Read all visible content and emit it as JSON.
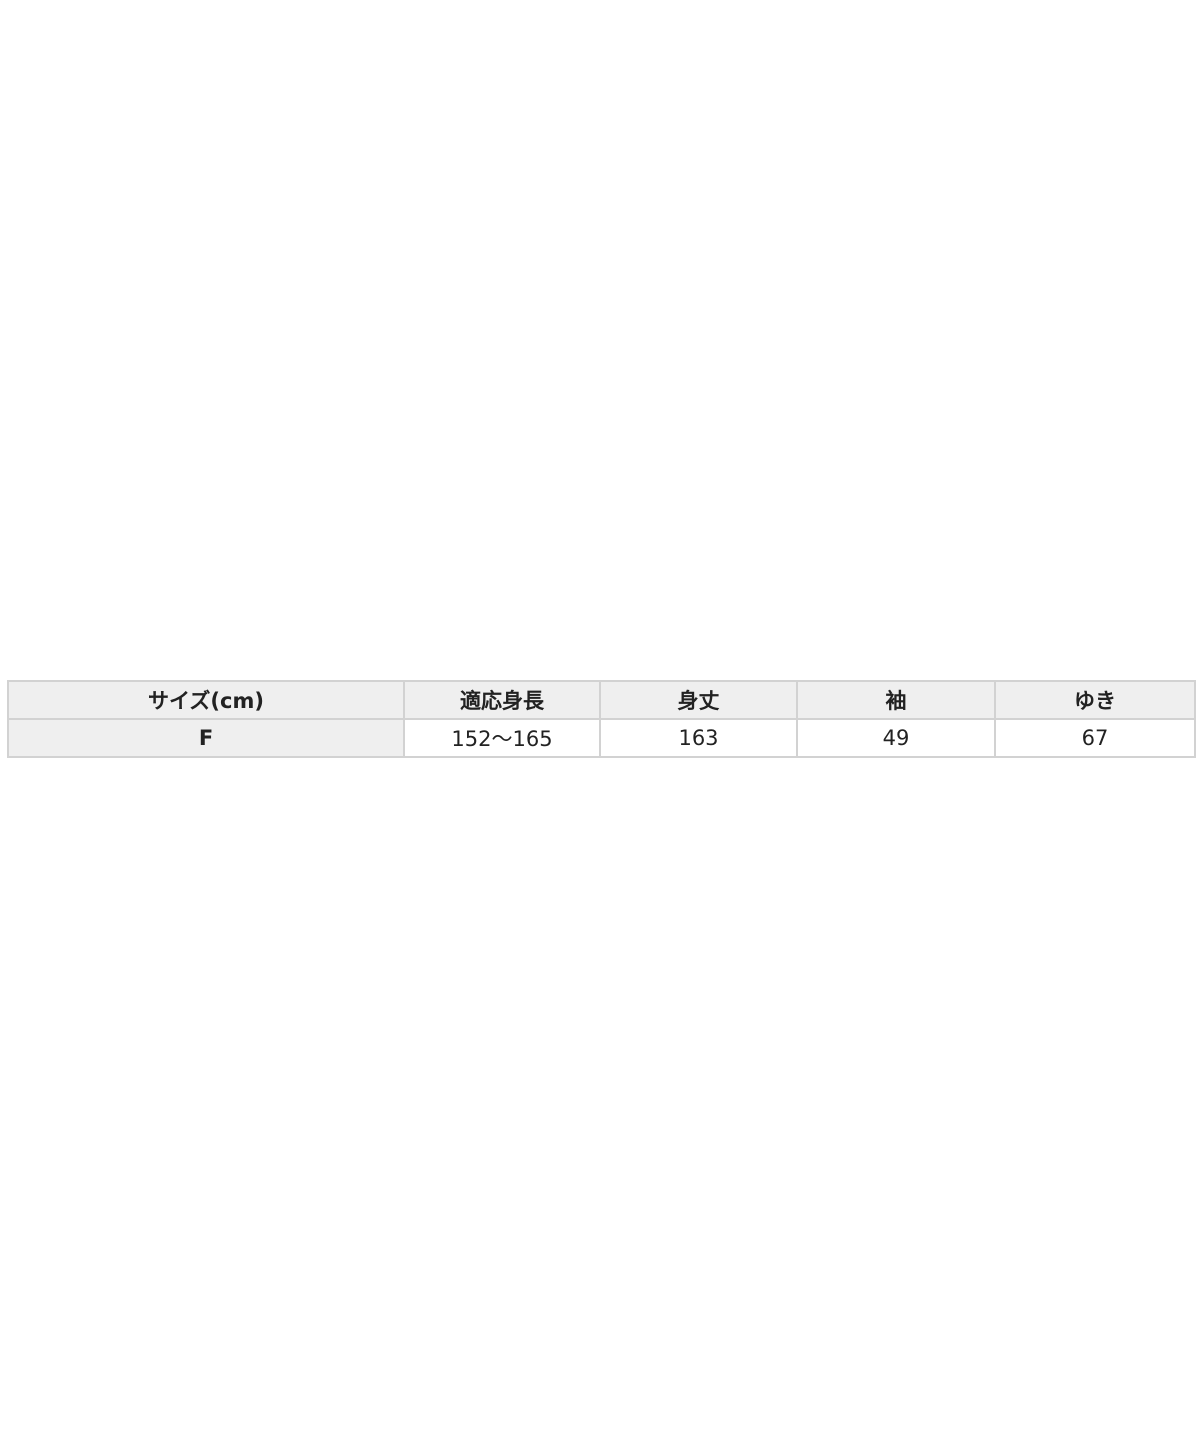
{
  "size_table": {
    "headers": [
      "サイズ(cm)",
      "適応身長",
      "身丈",
      "袖",
      "ゆき"
    ],
    "rows": [
      [
        "F",
        "152～165",
        "163",
        "49",
        "67"
      ]
    ]
  },
  "colors": {
    "header_bg": "#efefef",
    "border": "#d2d2d2",
    "text": "#222222"
  }
}
